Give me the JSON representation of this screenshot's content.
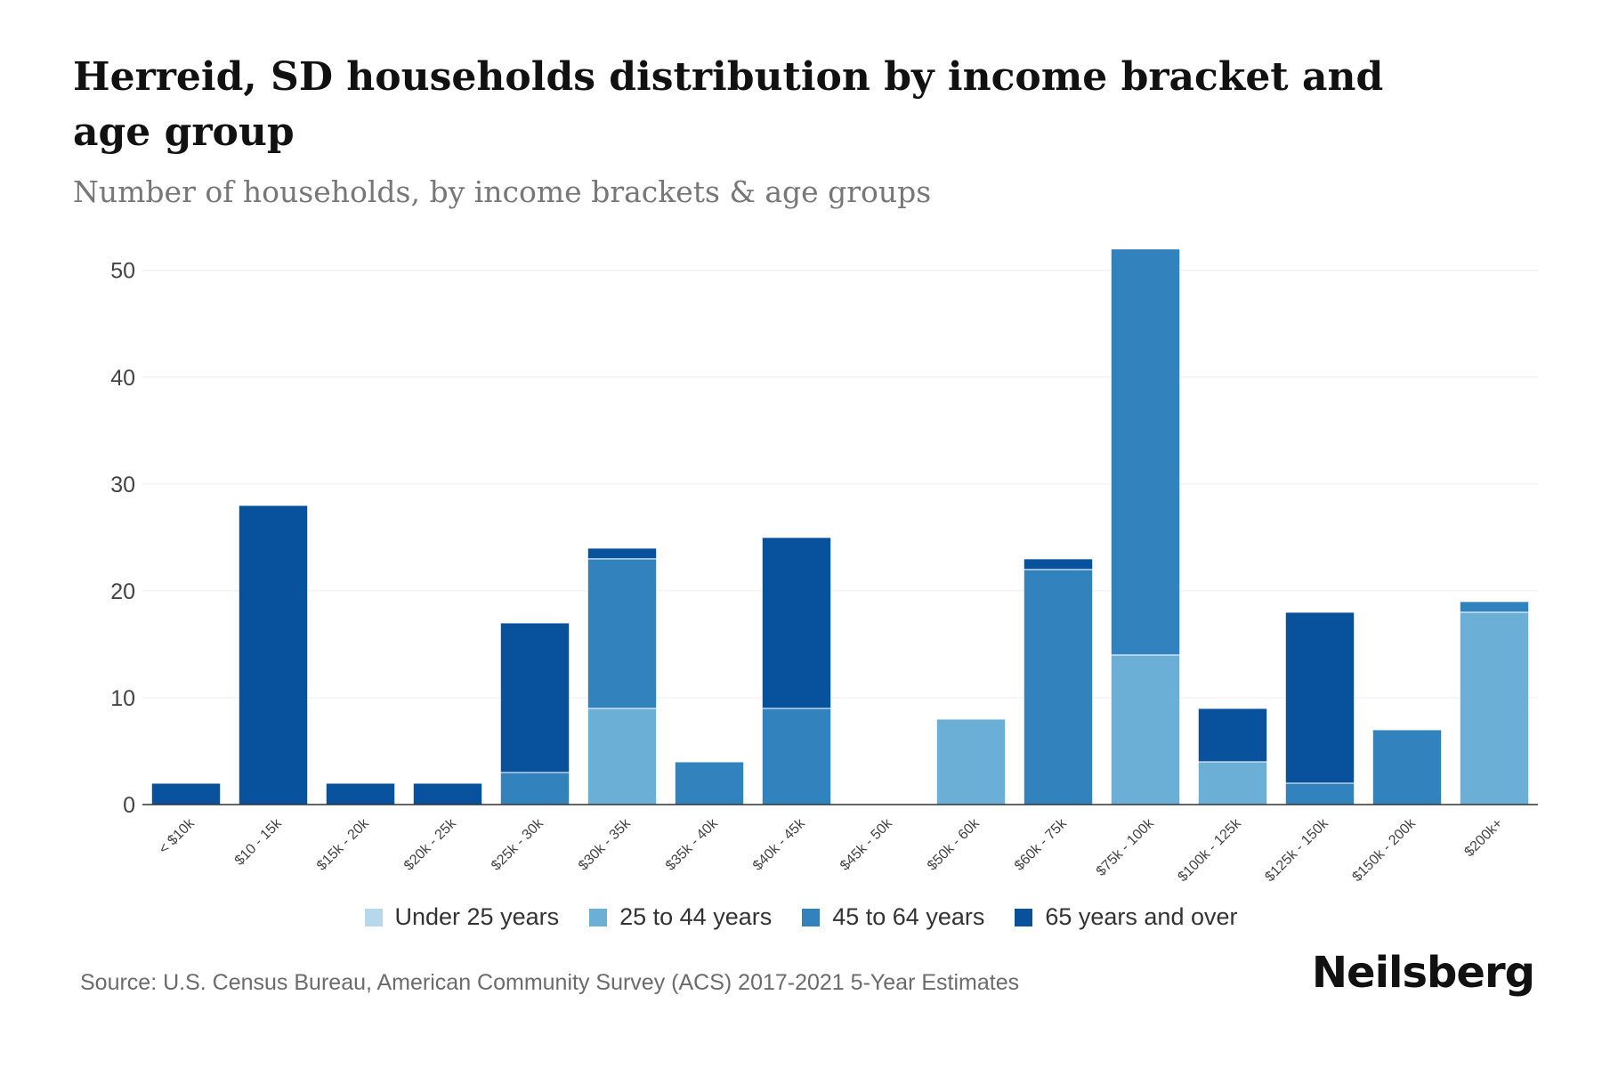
{
  "chart_data": {
    "type": "bar",
    "stacked": true,
    "title": "Herreid, SD households distribution by income bracket and age group",
    "subtitle": "Number of households, by income brackets & age groups",
    "xlabel": "",
    "ylabel": "",
    "ylim": [
      0,
      52
    ],
    "yticks": [
      0,
      10,
      20,
      30,
      40,
      50
    ],
    "grid": true,
    "legend_position": "bottom",
    "categories": [
      "< $10k",
      "$10 - 15k",
      "$15k - 20k",
      "$20k - 25k",
      "$25k - 30k",
      "$30k - 35k",
      "$35k - 40k",
      "$40k - 45k",
      "$45k - 50k",
      "$50k - 60k",
      "$60k - 75k",
      "$75k - 100k",
      "$100k - 125k",
      "$125k - 150k",
      "$150k - 200k",
      "$200k+"
    ],
    "series": [
      {
        "name": "Under 25 years",
        "color": "#b5d9ea",
        "values": [
          0,
          0,
          0,
          0,
          0,
          0,
          0,
          0,
          0,
          0,
          0,
          0,
          0,
          0,
          0,
          0
        ]
      },
      {
        "name": "25 to 44 years",
        "color": "#6baed6",
        "values": [
          0,
          0,
          0,
          0,
          0,
          9,
          0,
          0,
          0,
          8,
          0,
          14,
          4,
          0,
          0,
          18
        ]
      },
      {
        "name": "45 to 64 years",
        "color": "#3182bd",
        "values": [
          0,
          0,
          0,
          0,
          3,
          14,
          4,
          9,
          0,
          0,
          22,
          38,
          0,
          2,
          7,
          1
        ]
      },
      {
        "name": "65 years and over",
        "color": "#08519c",
        "values": [
          2,
          28,
          2,
          2,
          14,
          1,
          0,
          16,
          0,
          0,
          1,
          0,
          5,
          16,
          0,
          0
        ]
      }
    ]
  },
  "source": "Source: U.S. Census Bureau, American Community Survey (ACS) 2017-2021 5-Year Estimates",
  "brand": "Neilsberg"
}
